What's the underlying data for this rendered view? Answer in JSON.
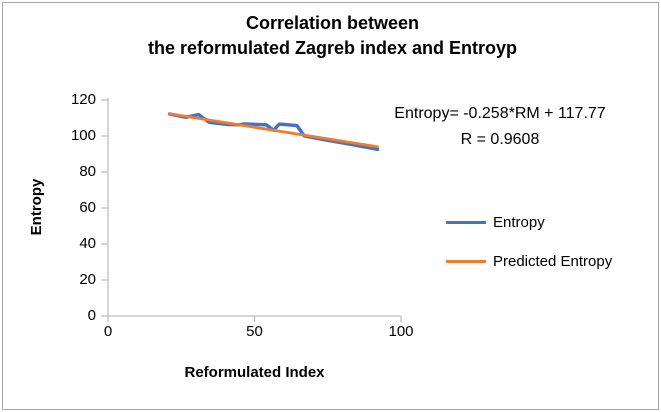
{
  "frame": {
    "border_color": "#a6a6a6",
    "background_color": "#ffffff"
  },
  "chart_data": {
    "type": "line",
    "title_lines": [
      "Correlation between",
      "the reformulated Zagreb index and Entroyp"
    ],
    "xlabel": "Reformulated Index",
    "ylabel": "Entropy",
    "xlim": [
      0,
      100
    ],
    "ylim": [
      0,
      120
    ],
    "x_ticks": [
      0,
      50,
      100
    ],
    "y_ticks": [
      0,
      20,
      40,
      60,
      80,
      100,
      120
    ],
    "grid": "off",
    "axis_color": "#bfbfbf",
    "text_color": "#000000",
    "legend_position": "right",
    "annotation": {
      "line1": "Entropy= -0.258*RM + 117.77",
      "line2": "R = 0.9608"
    },
    "series": [
      {
        "name": "Entropy",
        "color": "#4472c4",
        "points": [
          [
            21,
            112.3
          ],
          [
            26.5,
            110.4
          ],
          [
            31,
            111.9
          ],
          [
            34.5,
            107.6
          ],
          [
            41,
            106.4
          ],
          [
            45,
            106.2
          ],
          [
            46.5,
            106.7
          ],
          [
            54,
            106.2
          ],
          [
            56.5,
            103.2
          ],
          [
            58.5,
            106.6
          ],
          [
            64.5,
            105.8
          ],
          [
            67,
            100.0
          ],
          [
            74,
            97.9
          ],
          [
            83,
            95.3
          ],
          [
            92,
            92.6
          ]
        ]
      },
      {
        "name": "Predicted Entropy",
        "color": "#ed7d31",
        "points": [
          [
            21,
            112.35
          ],
          [
            92,
            94.03
          ]
        ]
      }
    ]
  }
}
